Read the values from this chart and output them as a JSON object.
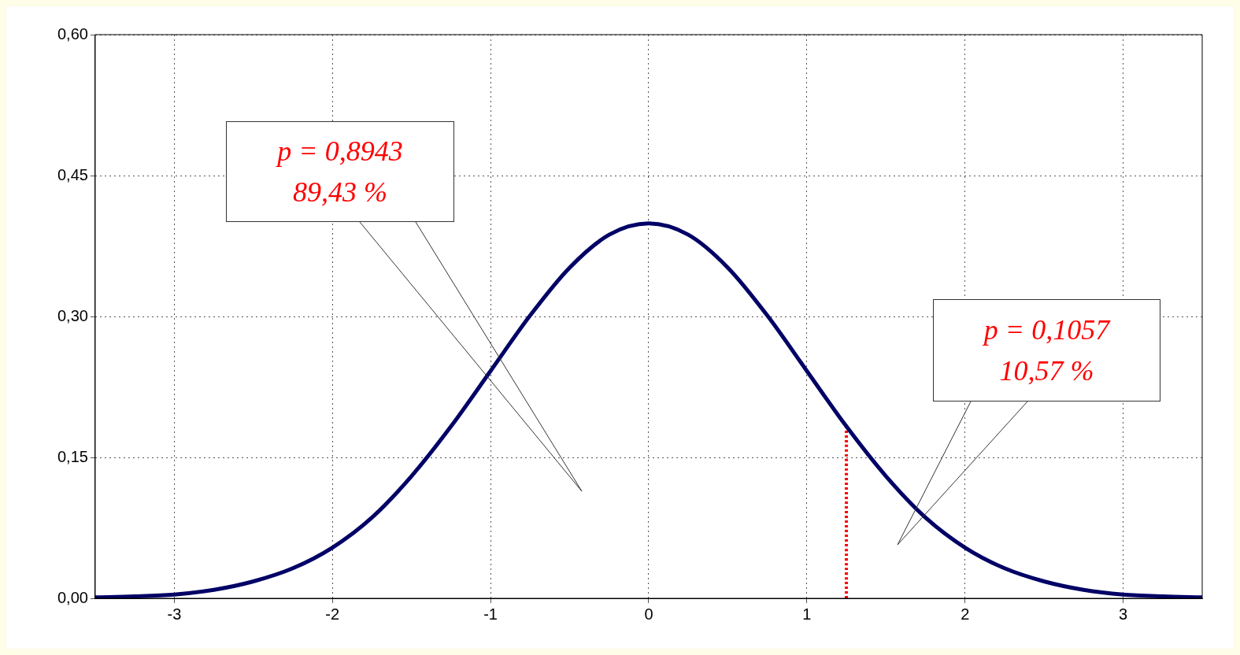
{
  "chart_data": {
    "type": "line",
    "xlim": [
      -3.5,
      3.5
    ],
    "xticks": [
      -3,
      -2,
      -1,
      0,
      1,
      2,
      3
    ],
    "ylim": [
      0,
      0.6
    ],
    "yticks": [
      {
        "value": 0,
        "label": "0,00"
      },
      {
        "value": 0.15,
        "label": "0,15"
      },
      {
        "value": 0.3,
        "label": "0,30"
      },
      {
        "value": 0.45,
        "label": "0,45"
      },
      {
        "value": 0.6,
        "label": "0,60"
      }
    ],
    "grid": true,
    "marker": "none",
    "legend": false,
    "series": [
      {
        "color": "#000066",
        "line_style": "solid",
        "x": [
          -3.5,
          -3.25,
          -3,
          -2.75,
          -2.5,
          -2.25,
          -2,
          -1.75,
          -1.5,
          -1.25,
          -1,
          -0.75,
          -0.5,
          -0.25,
          0,
          0.25,
          0.5,
          0.75,
          1,
          1.25,
          1.5,
          1.75,
          2,
          2.25,
          2.5,
          2.75,
          3,
          3.25,
          3.5
        ],
        "values": [
          0.001,
          0.002,
          0.004,
          0.009,
          0.018,
          0.032,
          0.054,
          0.086,
          0.13,
          0.183,
          0.242,
          0.301,
          0.352,
          0.387,
          0.399,
          0.387,
          0.352,
          0.301,
          0.242,
          0.183,
          0.13,
          0.086,
          0.054,
          0.032,
          0.018,
          0.009,
          0.004,
          0.002,
          0.001
        ]
      },
      {
        "color": "#ff0000",
        "line_style": "dotted",
        "x": [
          1.25,
          1.25
        ],
        "values": [
          0,
          0.183
        ]
      }
    ],
    "annotations": [
      "p = 0,8943\n89,43 %",
      "p = 0,1057\n10,57 %"
    ]
  }
}
